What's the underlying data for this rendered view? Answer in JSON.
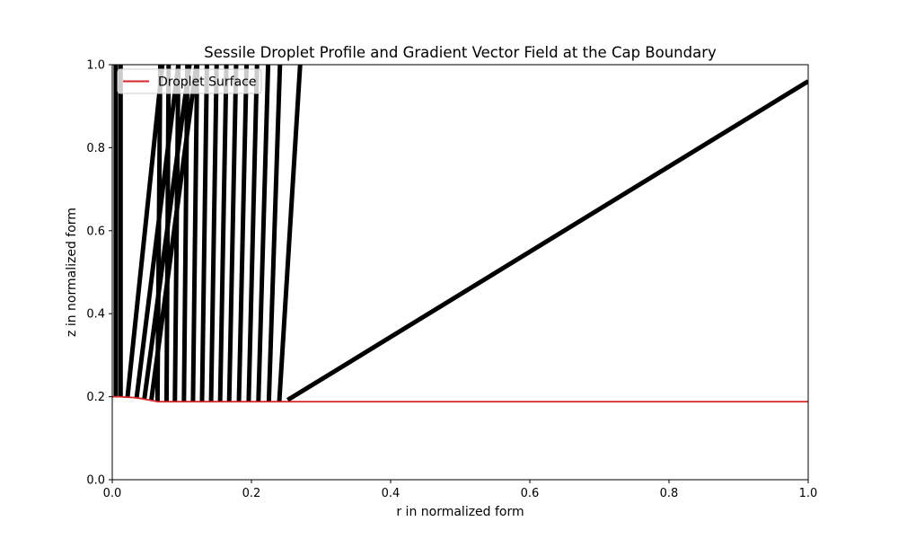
{
  "chart_data": {
    "type": "line",
    "title": "Sessile Droplet Profile and Gradient Vector Field at the Cap Boundary",
    "xlabel": "r in normalized form",
    "ylabel": "z in normalized form",
    "xlim": [
      0.0,
      1.0
    ],
    "ylim": [
      0.0,
      1.0
    ],
    "xticks": [
      "0.0",
      "0.2",
      "0.4",
      "0.6",
      "0.8",
      "1.0"
    ],
    "yticks": [
      "0.0",
      "0.2",
      "0.4",
      "0.6",
      "0.8",
      "1.0"
    ],
    "legend": {
      "location": "upper-left",
      "entries": [
        "Droplet Surface"
      ]
    },
    "series": [
      {
        "name": "Droplet Surface",
        "color": "#d62728",
        "x": [
          0.0,
          0.01,
          0.02,
          0.03,
          0.04,
          0.05,
          0.06,
          0.065,
          0.1,
          0.2,
          0.25,
          0.4,
          0.6,
          0.8,
          1.0
        ],
        "y": [
          0.2,
          0.2,
          0.199,
          0.198,
          0.196,
          0.193,
          0.19,
          0.188,
          0.188,
          0.188,
          0.188,
          0.188,
          0.188,
          0.188,
          0.188
        ]
      }
    ],
    "vectors": {
      "name": "Gradient Vector Field",
      "color": "#000000",
      "segments": [
        {
          "x0": 0.005,
          "y0": 0.2,
          "x1": 0.005,
          "y1": 1.0
        },
        {
          "x0": 0.012,
          "y0": 0.2,
          "x1": 0.012,
          "y1": 1.0
        },
        {
          "x0": 0.022,
          "y0": 0.2,
          "x1": 0.072,
          "y1": 1.0
        },
        {
          "x0": 0.035,
          "y0": 0.197,
          "x1": 0.095,
          "y1": 1.0
        },
        {
          "x0": 0.046,
          "y0": 0.193,
          "x1": 0.111,
          "y1": 1.0
        },
        {
          "x0": 0.056,
          "y0": 0.19,
          "x1": 0.121,
          "y1": 1.0
        },
        {
          "x0": 0.065,
          "y0": 0.188,
          "x1": 0.069,
          "y1": 1.0
        },
        {
          "x0": 0.078,
          "y0": 0.188,
          "x1": 0.081,
          "y1": 1.0
        },
        {
          "x0": 0.09,
          "y0": 0.188,
          "x1": 0.095,
          "y1": 1.0
        },
        {
          "x0": 0.103,
          "y0": 0.188,
          "x1": 0.108,
          "y1": 1.0
        },
        {
          "x0": 0.116,
          "y0": 0.188,
          "x1": 0.122,
          "y1": 1.0
        },
        {
          "x0": 0.129,
          "y0": 0.188,
          "x1": 0.136,
          "y1": 1.0
        },
        {
          "x0": 0.142,
          "y0": 0.188,
          "x1": 0.15,
          "y1": 1.0
        },
        {
          "x0": 0.155,
          "y0": 0.188,
          "x1": 0.164,
          "y1": 1.0
        },
        {
          "x0": 0.168,
          "y0": 0.188,
          "x1": 0.178,
          "y1": 1.0
        },
        {
          "x0": 0.182,
          "y0": 0.188,
          "x1": 0.193,
          "y1": 1.0
        },
        {
          "x0": 0.196,
          "y0": 0.188,
          "x1": 0.208,
          "y1": 1.0
        },
        {
          "x0": 0.21,
          "y0": 0.188,
          "x1": 0.224,
          "y1": 1.0
        },
        {
          "x0": 0.225,
          "y0": 0.188,
          "x1": 0.241,
          "y1": 1.0
        },
        {
          "x0": 0.24,
          "y0": 0.188,
          "x1": 0.27,
          "y1": 1.0
        },
        {
          "x0": 0.252,
          "y0": 0.192,
          "x1": 1.0,
          "y1": 0.96
        }
      ]
    }
  }
}
